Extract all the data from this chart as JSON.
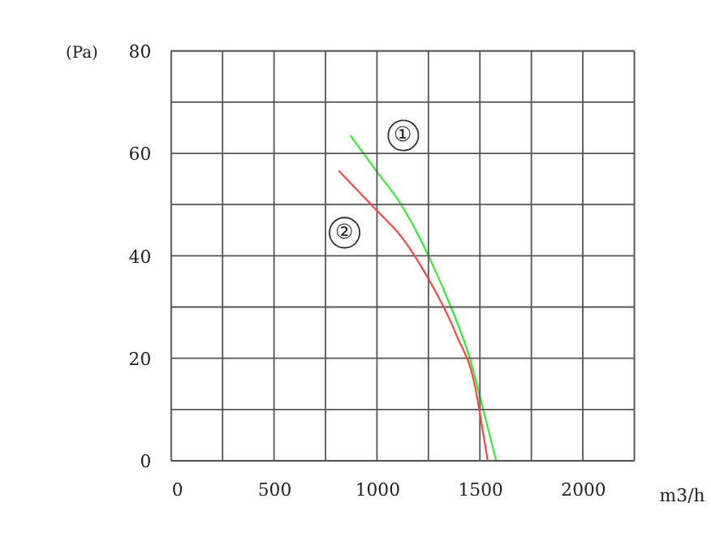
{
  "chart_data": {
    "type": "line",
    "xlabel": "m3/h",
    "ylabel": "(Pa)",
    "xlim": [
      0,
      2250
    ],
    "ylim": [
      0,
      80
    ],
    "xticks": [
      0,
      {
        "value": 250,
        "label": null
      },
      500,
      {
        "value": 750,
        "label": null
      },
      1000,
      {
        "value": 1250,
        "label": null
      },
      1500,
      {
        "value": 1750,
        "label": null
      },
      2000,
      {
        "value": 2250,
        "label": null
      }
    ],
    "yticks": [
      0,
      {
        "value": 10,
        "label": null
      },
      20,
      {
        "value": 30,
        "label": null
      },
      40,
      {
        "value": 50,
        "label": null
      },
      60,
      {
        "value": 70,
        "label": null
      },
      80
    ],
    "grid": true,
    "legend": false,
    "marker": "none",
    "line_style": "solid",
    "series": [
      {
        "name": "①",
        "color": "#33ee33",
        "x": [
          870,
          1000,
          1117,
          1250,
          1359,
          1451,
          1516,
          1579
        ],
        "values": [
          63.5,
          56.4,
          50,
          40,
          30,
          20,
          10,
          0
        ]
      },
      {
        "name": "②",
        "color": "#ff4444",
        "x": [
          814,
          1000,
          1117,
          1250,
          1383,
          1481,
          1505,
          1538
        ],
        "values": [
          56.6,
          48.8,
          43.8,
          35.5,
          24.8,
          13.6,
          8,
          0
        ]
      }
    ]
  }
}
